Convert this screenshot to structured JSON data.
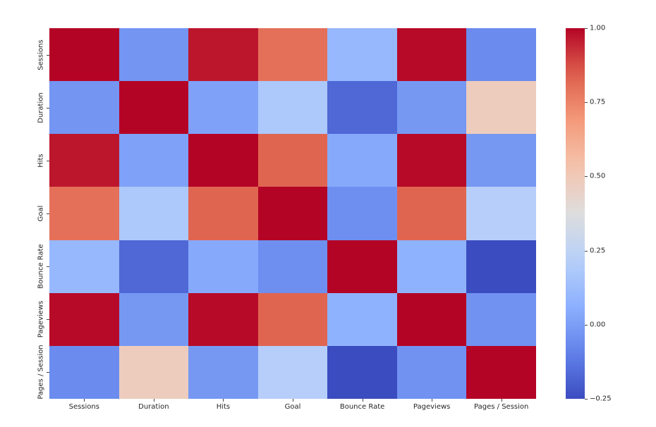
{
  "chart_data": {
    "type": "heatmap",
    "title": "",
    "xlabel": "",
    "ylabel": "",
    "colormap": "coolwarm",
    "x_labels": [
      "Sessions",
      "Duration",
      "Hits",
      "Goal",
      "Bounce Rate",
      "Pageviews",
      "Pages / Session"
    ],
    "y_labels": [
      "Sessions",
      "Duration",
      "Hits",
      "Goal",
      "Bounce Rate",
      "Pageviews",
      "Pages / Session"
    ],
    "values": [
      [
        1.0,
        -0.03,
        0.97,
        0.8,
        0.1,
        0.99,
        -0.06
      ],
      [
        -0.03,
        1.0,
        0.01,
        0.18,
        -0.17,
        -0.02,
        0.48
      ],
      [
        0.97,
        0.01,
        1.0,
        0.83,
        0.04,
        0.99,
        -0.02
      ],
      [
        0.8,
        0.18,
        0.83,
        1.0,
        -0.05,
        0.83,
        0.21
      ],
      [
        0.1,
        -0.17,
        0.04,
        -0.05,
        1.0,
        0.07,
        -0.25
      ],
      [
        0.99,
        -0.02,
        0.99,
        0.83,
        0.07,
        1.0,
        -0.04
      ],
      [
        -0.06,
        0.48,
        -0.02,
        0.21,
        -0.25,
        -0.04,
        1.0
      ]
    ],
    "colorbar": {
      "min": -0.25,
      "max": 1.0,
      "ticks": [
        1.0,
        0.75,
        0.5,
        0.25,
        0.0,
        -0.25
      ],
      "tick_labels": [
        "1.00",
        "0.75",
        "0.50",
        "0.25",
        "0.00",
        "−0.25"
      ]
    },
    "grid": false,
    "legend_position": "right"
  }
}
